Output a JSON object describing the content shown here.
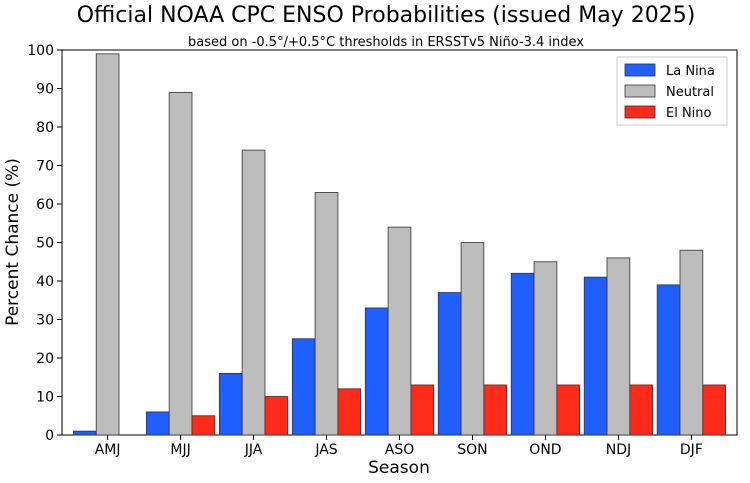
{
  "chart_data": {
    "type": "bar",
    "title": "Official NOAA CPC ENSO Probabilities (issued May 2025)",
    "subtitle": "based on -0.5°/+0.5°C thresholds in ERSSTv5 Niño-3.4 index",
    "xlabel": "Season",
    "ylabel": "Percent Chance (%)",
    "ylim": [
      0,
      100
    ],
    "yticks": [
      0,
      10,
      20,
      30,
      40,
      50,
      60,
      70,
      80,
      90,
      100
    ],
    "categories": [
      "AMJ",
      "MJJ",
      "JJA",
      "JAS",
      "ASO",
      "SON",
      "OND",
      "NDJ",
      "DJF"
    ],
    "series": [
      {
        "name": "La Nina",
        "color": "#1f5fff",
        "values": [
          1,
          6,
          16,
          25,
          33,
          37,
          42,
          41,
          39
        ]
      },
      {
        "name": "Neutral",
        "color": "#bdbdbd",
        "values": [
          99,
          89,
          74,
          63,
          54,
          50,
          45,
          46,
          48
        ]
      },
      {
        "name": "El Nino",
        "color": "#ff2a1a",
        "values": [
          0,
          5,
          10,
          12,
          13,
          13,
          13,
          13,
          13
        ]
      }
    ],
    "legend": "top-right",
    "grid": false
  }
}
